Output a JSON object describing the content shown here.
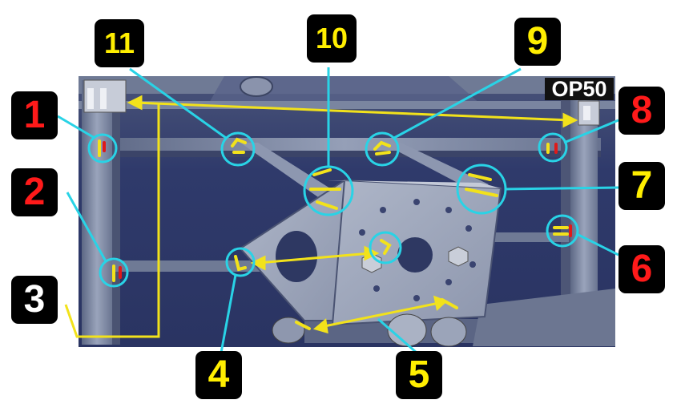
{
  "image_label": "OP50",
  "colors": {
    "background_panel": "#2f3a6b",
    "frame_metal": "#7f8aa3",
    "callout_line": "#29d3e6",
    "arrow": "#f2e21b",
    "weld_mark": "#f2e21b",
    "weld_red": "#e01919",
    "badge_bg": "#000000"
  },
  "callouts": [
    {
      "id": "1",
      "label": "1",
      "color": "#ff1a1a"
    },
    {
      "id": "2",
      "label": "2",
      "color": "#ff1a1a"
    },
    {
      "id": "3",
      "label": "3",
      "color": "#ffffff"
    },
    {
      "id": "4",
      "label": "4",
      "color": "#ffee00"
    },
    {
      "id": "5",
      "label": "5",
      "color": "#ffee00"
    },
    {
      "id": "6",
      "label": "6",
      "color": "#ff1a1a"
    },
    {
      "id": "7",
      "label": "7",
      "color": "#ffee00"
    },
    {
      "id": "8",
      "label": "8",
      "color": "#ff1a1a"
    },
    {
      "id": "9",
      "label": "9",
      "color": "#ffee00"
    },
    {
      "id": "10",
      "label": "10",
      "color": "#ffee00"
    },
    {
      "id": "11",
      "label": "11",
      "color": "#ffee00"
    }
  ]
}
